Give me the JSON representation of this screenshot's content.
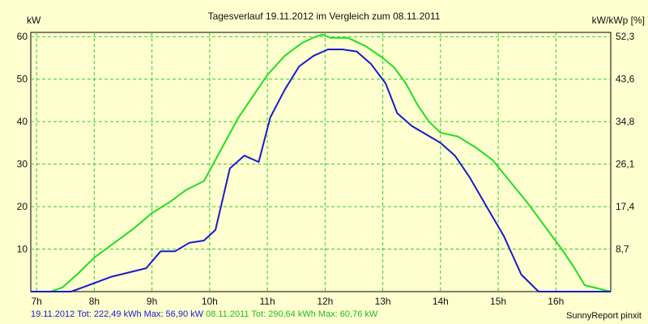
{
  "chart_data": {
    "type": "line",
    "title": "Tagesverlauf 19.11.2012 im Vergleich zum 08.11.2011",
    "ylabel": "kW",
    "y2label": "kW/kWp [%]",
    "xlim": [
      6.9,
      16.95
    ],
    "ylim": [
      0,
      61
    ],
    "x_ticks": [
      7,
      8,
      9,
      10,
      11,
      12,
      13,
      14,
      15,
      16
    ],
    "x_tick_labels": [
      "7h",
      "8h",
      "9h",
      "10h",
      "11h",
      "12h",
      "13h",
      "14h",
      "15h",
      "16h"
    ],
    "y_ticks": [
      10,
      20,
      30,
      40,
      50,
      60
    ],
    "y_tick_labels": [
      "10",
      "20",
      "30",
      "40",
      "50",
      "60"
    ],
    "y2_ticks": [
      10,
      20,
      30,
      40,
      50,
      60
    ],
    "y2_tick_labels": [
      "8,7",
      "17,4",
      "26,1",
      "34,8",
      "43,6",
      "52,3"
    ],
    "grid": true,
    "series": [
      {
        "name": "08.11.2011",
        "color": "#22dd22",
        "x": [
          6.9,
          7.25,
          7.45,
          7.7,
          8.0,
          8.3,
          8.7,
          9.0,
          9.3,
          9.6,
          9.9,
          10.1,
          10.3,
          10.5,
          10.8,
          11.0,
          11.3,
          11.6,
          11.8,
          11.95,
          12.1,
          12.4,
          12.7,
          13.0,
          13.2,
          13.4,
          13.6,
          13.8,
          14.0,
          14.3,
          14.6,
          14.9,
          15.2,
          15.5,
          15.8,
          16.1,
          16.3,
          16.5,
          16.95
        ],
        "y": [
          0,
          0,
          1,
          4,
          8,
          11,
          15,
          18.5,
          21,
          24,
          26,
          31,
          36,
          41,
          47,
          51,
          55.5,
          58.5,
          59.8,
          60.5,
          59.7,
          59.7,
          57.8,
          55,
          52.7,
          49,
          44,
          40,
          37.4,
          36.5,
          34,
          31,
          26,
          21,
          15.5,
          10,
          6,
          1.5,
          0
        ]
      },
      {
        "name": "19.11.2012",
        "color": "#1a1acc",
        "x": [
          6.9,
          7.6,
          7.8,
          8.0,
          8.3,
          8.6,
          8.9,
          9.15,
          9.4,
          9.65,
          9.9,
          10.1,
          10.35,
          10.6,
          10.85,
          11.05,
          11.3,
          11.55,
          11.8,
          12.05,
          12.3,
          12.55,
          12.8,
          13.05,
          13.25,
          13.5,
          13.75,
          14.0,
          14.25,
          14.5,
          14.8,
          15.1,
          15.4,
          15.7,
          16.0,
          16.95
        ],
        "y": [
          0,
          0,
          1,
          2,
          3.5,
          4.5,
          5.5,
          9.5,
          9.5,
          11.5,
          12,
          14.5,
          29,
          32,
          30.5,
          41,
          47.5,
          53,
          55.5,
          57,
          57,
          56.5,
          53.5,
          49,
          42,
          39,
          37,
          35,
          32,
          27,
          20,
          13,
          4,
          0,
          0,
          0
        ]
      }
    ],
    "footer": {
      "s1_date": "19.11.2012",
      "s1_stats": "Tot: 222,49 kWh Max: 56,90 kW",
      "s2_date": "08.11.2011",
      "s2_stats": "Tot: 290,64 kWh Max: 60,76 kW"
    },
    "credit": "SunnyReport pinxit"
  }
}
